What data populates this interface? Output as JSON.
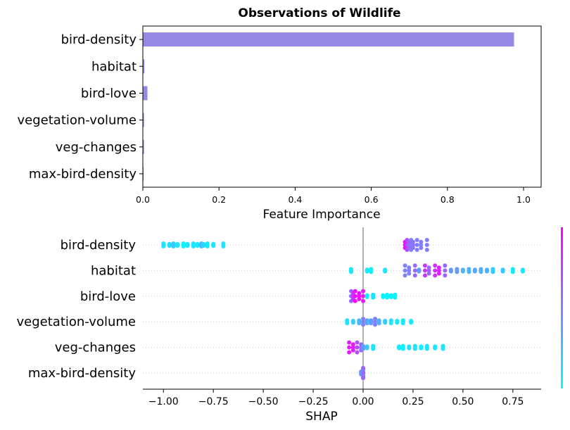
{
  "chart_data": [
    {
      "type": "bar",
      "orientation": "horizontal",
      "title": "Observations of Wildlife",
      "xlabel": "Feature Importance",
      "ylabel": "",
      "xlim": [
        0,
        1.02
      ],
      "xticks": [
        "0.0",
        "0.2",
        "0.4",
        "0.6",
        "0.8",
        "1.0"
      ],
      "categories": [
        "bird-density",
        "habitat",
        "bird-love",
        "vegetation-volume",
        "veg-changes",
        "max-bird-density"
      ],
      "values": [
        0.975,
        0.004,
        0.012,
        0.003,
        0.003,
        0.001
      ],
      "bar_color": "#9489e3",
      "grid": false
    },
    {
      "type": "scatter",
      "subtype": "beeswarm",
      "title": "",
      "xlabel": "SHAP",
      "ylabel": "",
      "xlim": [
        -1.1,
        0.9
      ],
      "xticks": [
        "−1.00",
        "−0.75",
        "−0.50",
        "−0.25",
        "0.00",
        "0.25",
        "0.50",
        "0.75"
      ],
      "categories": [
        "bird-density",
        "habitat",
        "bird-love",
        "vegetation-volume",
        "veg-changes",
        "max-bird-density"
      ],
      "colormap": [
        "#00ffff",
        "#ff00ff"
      ],
      "grid": "dotted-horizontal",
      "clusters": [
        {
          "row": "bird-density",
          "points": [
            [
              -1.0,
              0.1
            ],
            [
              -0.97,
              0.15
            ],
            [
              -0.95,
              0.2
            ],
            [
              -0.93,
              0.1
            ],
            [
              -0.9,
              0.05
            ],
            [
              -0.88,
              0.1
            ],
            [
              -0.85,
              0.1
            ],
            [
              -0.83,
              0.1
            ],
            [
              -0.81,
              0.3
            ],
            [
              -0.8,
              0.15
            ],
            [
              -0.78,
              0.1
            ],
            [
              -0.75,
              0.1
            ],
            [
              -0.7,
              0.1
            ],
            [
              0.21,
              0.95
            ],
            [
              0.22,
              0.7
            ],
            [
              0.23,
              0.6
            ],
            [
              0.24,
              0.5
            ],
            [
              0.25,
              0.55
            ],
            [
              0.27,
              0.5
            ],
            [
              0.29,
              0.5
            ],
            [
              0.32,
              0.5
            ]
          ]
        },
        {
          "row": "habitat",
          "points": [
            [
              -0.06,
              0.1
            ],
            [
              0.02,
              0.1
            ],
            [
              0.04,
              0.05
            ],
            [
              0.11,
              0.1
            ],
            [
              0.21,
              0.5
            ],
            [
              0.23,
              0.5
            ],
            [
              0.26,
              0.6
            ],
            [
              0.28,
              0.4
            ],
            [
              0.31,
              0.8
            ],
            [
              0.33,
              0.6
            ],
            [
              0.36,
              0.8
            ],
            [
              0.38,
              0.9
            ],
            [
              0.41,
              0.6
            ],
            [
              0.44,
              0.4
            ],
            [
              0.47,
              0.4
            ],
            [
              0.5,
              0.3
            ],
            [
              0.53,
              0.3
            ],
            [
              0.56,
              0.35
            ],
            [
              0.59,
              0.3
            ],
            [
              0.62,
              0.3
            ],
            [
              0.65,
              0.2
            ],
            [
              0.7,
              0.2
            ],
            [
              0.75,
              0.1
            ],
            [
              0.8,
              0.1
            ]
          ]
        },
        {
          "row": "bird-love",
          "points": [
            [
              -0.06,
              0.6
            ],
            [
              -0.05,
              0.8
            ],
            [
              -0.04,
              0.95
            ],
            [
              -0.02,
              0.95
            ],
            [
              0.0,
              0.9
            ],
            [
              0.02,
              0.05
            ],
            [
              0.05,
              0.1
            ],
            [
              0.1,
              0.05
            ],
            [
              0.12,
              0.05
            ],
            [
              0.14,
              0.05
            ],
            [
              0.16,
              0.05
            ]
          ]
        },
        {
          "row": "vegetation-volume",
          "points": [
            [
              -0.08,
              0.1
            ],
            [
              -0.05,
              0.2
            ],
            [
              -0.02,
              0.3
            ],
            [
              0.0,
              0.5
            ],
            [
              0.02,
              0.4
            ],
            [
              0.03,
              0.2
            ],
            [
              0.04,
              0.4
            ],
            [
              0.06,
              0.5
            ],
            [
              0.08,
              0.3
            ],
            [
              0.11,
              0.2
            ],
            [
              0.14,
              0.1
            ],
            [
              0.17,
              0.1
            ],
            [
              0.2,
              0.1
            ],
            [
              0.24,
              0.1
            ]
          ]
        },
        {
          "row": "veg-changes",
          "points": [
            [
              -0.07,
              0.9
            ],
            [
              -0.05,
              0.9
            ],
            [
              -0.03,
              0.7
            ],
            [
              -0.01,
              0.6
            ],
            [
              0.0,
              0.4
            ],
            [
              0.02,
              0.2
            ],
            [
              0.05,
              0.1
            ],
            [
              0.18,
              0.1
            ],
            [
              0.2,
              0.05
            ],
            [
              0.23,
              0.1
            ],
            [
              0.26,
              0.1
            ],
            [
              0.29,
              0.05
            ],
            [
              0.32,
              0.1
            ],
            [
              0.36,
              0.1
            ],
            [
              0.4,
              0.1
            ]
          ]
        },
        {
          "row": "max-bird-density",
          "points": [
            [
              -0.01,
              0.4
            ],
            [
              0.0,
              0.5
            ],
            [
              0.0,
              0.9
            ],
            [
              0.0,
              0.4
            ],
            [
              0.0,
              0.5
            ],
            [
              0.0,
              0.5
            ],
            [
              0.0,
              0.6
            ]
          ]
        }
      ]
    }
  ]
}
